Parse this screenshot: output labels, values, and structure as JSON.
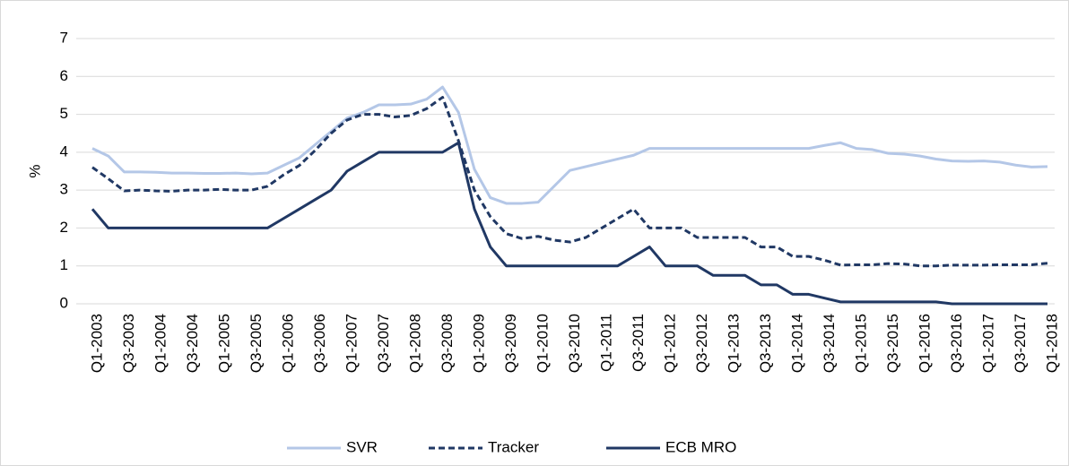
{
  "chart_data": {
    "type": "line",
    "y_label": "%",
    "categories": [
      "Q1-2003",
      null,
      "Q3-2003",
      null,
      "Q1-2004",
      null,
      "Q3-2004",
      null,
      "Q1-2005",
      null,
      "Q3-2005",
      null,
      "Q1-2006",
      null,
      "Q3-2006",
      null,
      "Q1-2007",
      null,
      "Q3-2007",
      null,
      "Q1-2008",
      null,
      "Q3-2008",
      null,
      "Q1-2009",
      null,
      "Q3-2009",
      null,
      "Q1-2010",
      null,
      "Q3-2010",
      null,
      "Q1-2011",
      null,
      "Q3-2011",
      null,
      "Q1-2012",
      null,
      "Q3-2012",
      null,
      "Q1-2013",
      null,
      "Q3-2013",
      null,
      "Q1-2014",
      null,
      "Q3-2014",
      null,
      "Q1-2015",
      null,
      "Q3-2015",
      null,
      "Q1-2016",
      null,
      "Q3-2016",
      null,
      "Q1-2017",
      null,
      "Q3-2017",
      null,
      "Q1-2018"
    ],
    "series": [
      {
        "name": "SVR",
        "color": "#b4c7e7",
        "dash": "solid",
        "values": [
          4.1,
          3.9,
          3.48,
          3.48,
          3.47,
          3.45,
          3.45,
          3.44,
          3.44,
          3.45,
          3.43,
          3.45,
          3.65,
          3.85,
          4.2,
          4.55,
          4.9,
          5.05,
          5.25,
          5.25,
          5.27,
          5.4,
          5.72,
          5.05,
          3.55,
          2.8,
          2.65,
          2.65,
          2.68,
          3.1,
          3.52,
          3.62,
          3.72,
          3.82,
          3.92,
          4.1,
          4.1,
          4.1,
          4.1,
          4.1,
          4.1,
          4.1,
          4.1,
          4.1,
          4.1,
          4.1,
          4.18,
          4.25,
          4.1,
          4.07,
          3.97,
          3.95,
          3.9,
          3.82,
          3.77,
          3.76,
          3.77,
          3.74,
          3.66,
          3.61,
          3.62
        ]
      },
      {
        "name": "Tracker",
        "color": "#203864",
        "dash": "dashed",
        "values": [
          3.6,
          3.3,
          2.98,
          3.0,
          2.98,
          2.97,
          3.0,
          3.0,
          3.02,
          3.0,
          3.0,
          3.1,
          3.4,
          3.65,
          4.05,
          4.5,
          4.85,
          5.0,
          5.0,
          4.93,
          4.97,
          5.15,
          5.45,
          4.3,
          3.0,
          2.3,
          1.85,
          1.72,
          1.78,
          1.68,
          1.63,
          1.75,
          2.0,
          2.25,
          2.5,
          2.0,
          2.0,
          2.0,
          1.75,
          1.75,
          1.75,
          1.75,
          1.5,
          1.5,
          1.25,
          1.25,
          1.15,
          1.02,
          1.03,
          1.03,
          1.06,
          1.05,
          1.0,
          1.0,
          1.02,
          1.02,
          1.02,
          1.03,
          1.03,
          1.03,
          1.07
        ]
      },
      {
        "name": "ECB MRO",
        "color": "#203864",
        "dash": "solid",
        "values": [
          2.5,
          2.0,
          2.0,
          2.0,
          2.0,
          2.0,
          2.0,
          2.0,
          2.0,
          2.0,
          2.0,
          2.0,
          2.25,
          2.5,
          2.75,
          3.0,
          3.5,
          3.75,
          4.0,
          4.0,
          4.0,
          4.0,
          4.0,
          4.25,
          2.5,
          1.5,
          1.0,
          1.0,
          1.0,
          1.0,
          1.0,
          1.0,
          1.0,
          1.0,
          1.25,
          1.5,
          1.0,
          1.0,
          1.0,
          0.75,
          0.75,
          0.75,
          0.5,
          0.5,
          0.25,
          0.25,
          0.15,
          0.05,
          0.05,
          0.05,
          0.05,
          0.05,
          0.05,
          0.05,
          0.0,
          0.0,
          0.0,
          0.0,
          0.0,
          0.0,
          0.0
        ]
      }
    ],
    "ylim": [
      0,
      7
    ],
    "yticks": [
      0,
      1,
      2,
      3,
      4,
      5,
      6,
      7
    ],
    "grid": true,
    "legend": "bottom"
  }
}
